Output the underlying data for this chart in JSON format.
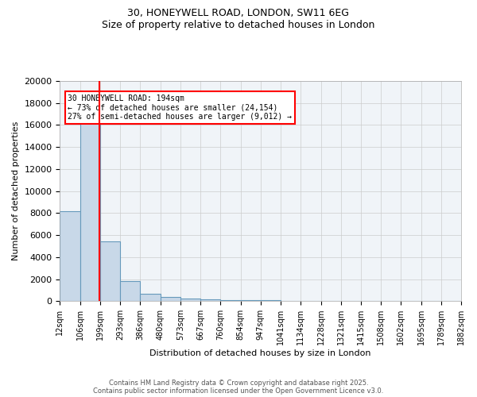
{
  "title_line1": "30, HONEYWELL ROAD, LONDON, SW11 6EG",
  "title_line2": "Size of property relative to detached houses in London",
  "xlabel": "Distribution of detached houses by size in London",
  "ylabel": "Number of detached properties",
  "bar_edges": [
    12,
    106,
    199,
    293,
    386,
    480,
    573,
    667,
    760,
    854,
    947,
    1041,
    1134,
    1228,
    1321,
    1415,
    1508,
    1602,
    1695,
    1789,
    1882
  ],
  "bar_heights": [
    8200,
    16700,
    5400,
    1800,
    650,
    350,
    250,
    150,
    100,
    80,
    60,
    50,
    40,
    30,
    20,
    15,
    10,
    8,
    5,
    3
  ],
  "bar_color": "#c8d8e8",
  "bar_edge_color": "#6699bb",
  "property_size": 194,
  "annotation_title": "30 HONEYWELL ROAD: 194sqm",
  "annotation_line2": "← 73% of detached houses are smaller (24,154)",
  "annotation_line3": "27% of semi-detached houses are larger (9,012) →",
  "annotation_box_color": "#ff0000",
  "vline_color": "#ff0000",
  "ylim": [
    0,
    20000
  ],
  "yticks": [
    0,
    2000,
    4000,
    6000,
    8000,
    10000,
    12000,
    14000,
    16000,
    18000,
    20000
  ],
  "tick_labels": [
    "12sqm",
    "106sqm",
    "199sqm",
    "293sqm",
    "386sqm",
    "480sqm",
    "573sqm",
    "667sqm",
    "760sqm",
    "854sqm",
    "947sqm",
    "1041sqm",
    "1134sqm",
    "1228sqm",
    "1321sqm",
    "1415sqm",
    "1508sqm",
    "1602sqm",
    "1695sqm",
    "1789sqm",
    "1882sqm"
  ],
  "footer_line1": "Contains HM Land Registry data © Crown copyright and database right 2025.",
  "footer_line2": "Contains public sector information licensed under the Open Government Licence v3.0.",
  "bg_color": "#f0f4f8",
  "grid_color": "#cccccc"
}
